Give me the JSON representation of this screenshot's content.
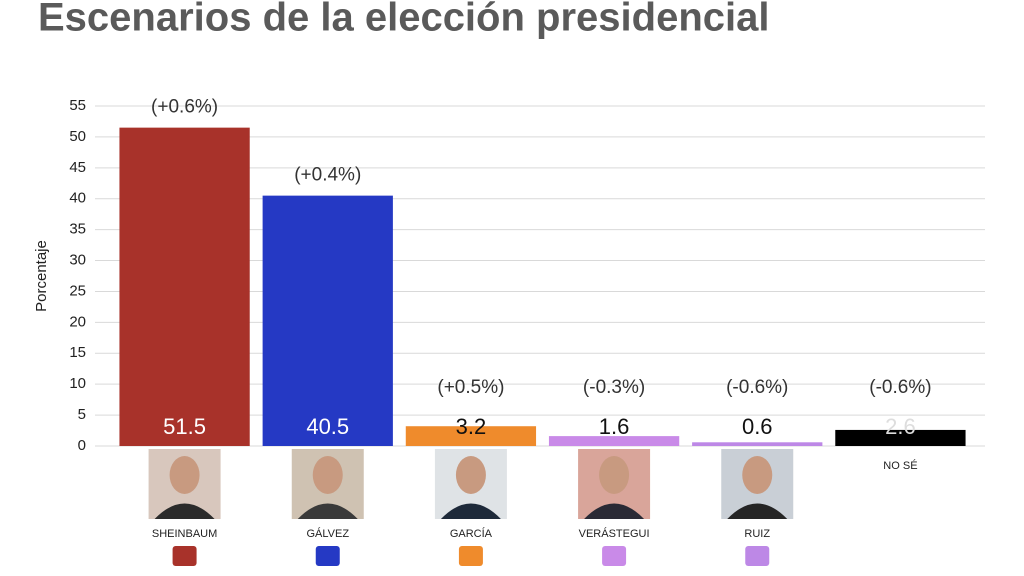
{
  "chart_data": {
    "type": "bar",
    "title": "Escenarios de la elección presidencial",
    "y_label": "Porcentaje",
    "categories": [
      "SHEINBAUM",
      "GÁLVEZ",
      "GARCÍA",
      "VERÁSTEGUI",
      "RUIZ",
      "NO SÉ"
    ],
    "values": [
      51.5,
      40.5,
      3.2,
      1.6,
      0.6,
      2.6
    ],
    "colors": [
      "#a8322a",
      "#2539c4",
      "#ef8b2c",
      "#c98ae8",
      "#bd88e6",
      "#000000"
    ],
    "changes": [
      "(+0.6%)",
      "(+0.4%)",
      "(+0.5%)",
      "(-0.3%)",
      "(-0.6%)",
      "(-0.6%)"
    ],
    "ylim": [
      0,
      55
    ],
    "yticks": [
      0,
      5,
      10,
      15,
      20,
      25,
      30,
      35,
      40,
      45,
      50,
      55
    ],
    "grid": true
  }
}
